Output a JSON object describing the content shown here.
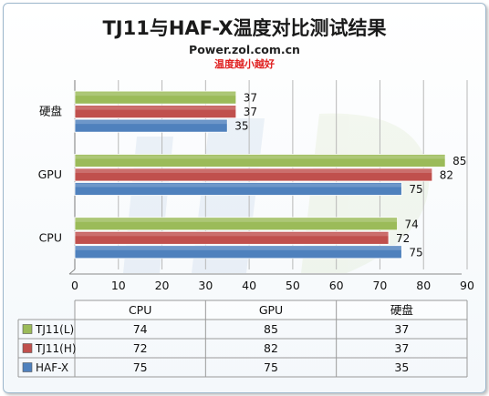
{
  "chart_data": {
    "type": "bar",
    "orientation": "horizontal",
    "title": "TJ11与HAF-X温度对比测试结果",
    "source": "Power.zol.com.cn",
    "subtitle": "温度越小越好",
    "categories": [
      "硬盘",
      "GPU",
      "CPU"
    ],
    "table_columns": [
      "CPU",
      "GPU",
      "硬盘"
    ],
    "series": [
      {
        "name": "TJ11(L)",
        "color": "#9bbb59",
        "values": [
          37,
          85,
          74
        ]
      },
      {
        "name": "TJ11(H)",
        "color": "#c0504d",
        "values": [
          37,
          82,
          72
        ]
      },
      {
        "name": "HAF-X",
        "color": "#4f81bd",
        "values": [
          35,
          75,
          75
        ]
      }
    ],
    "xlim": [
      0,
      90
    ],
    "xticks": [
      0,
      10,
      20,
      30,
      40,
      50,
      60,
      70,
      80,
      90
    ],
    "grid": true,
    "legend": "data-table"
  }
}
